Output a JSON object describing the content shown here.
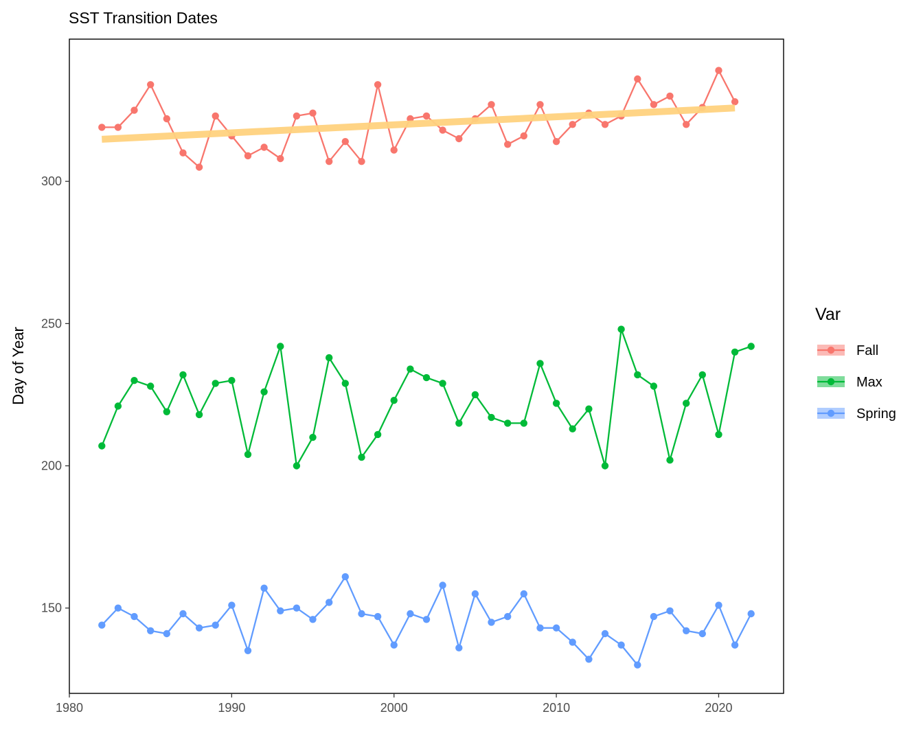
{
  "chart_data": {
    "type": "line",
    "title": "SST Transition Dates",
    "xlabel": "",
    "ylabel": "Day of Year",
    "xlim": [
      1980,
      2024
    ],
    "ylim": [
      120,
      350
    ],
    "x_ticks": [
      1980,
      1990,
      2000,
      2010,
      2020
    ],
    "y_ticks": [
      150,
      200,
      250,
      300
    ],
    "grid": false,
    "legend": {
      "title": "Var",
      "placement": "right"
    },
    "series": [
      {
        "name": "Fall",
        "color": "#F8766D",
        "x": [
          1982,
          1983,
          1984,
          1985,
          1986,
          1987,
          1988,
          1989,
          1990,
          1991,
          1992,
          1993,
          1994,
          1995,
          1996,
          1997,
          1998,
          1999,
          2000,
          2001,
          2002,
          2003,
          2004,
          2005,
          2006,
          2007,
          2008,
          2009,
          2010,
          2011,
          2012,
          2013,
          2014,
          2015,
          2016,
          2017,
          2018,
          2019,
          2020,
          2021
        ],
        "values": [
          319,
          319,
          325,
          334,
          322,
          310,
          305,
          323,
          316,
          309,
          312,
          308,
          323,
          324,
          307,
          314,
          307,
          334,
          311,
          322,
          323,
          318,
          315,
          322,
          327,
          313,
          316,
          327,
          314,
          320,
          324,
          320,
          323,
          336,
          327,
          330,
          320,
          326,
          339,
          328
        ]
      },
      {
        "name": "Max",
        "color": "#00BA38",
        "x": [
          1982,
          1983,
          1984,
          1985,
          1986,
          1987,
          1988,
          1989,
          1990,
          1991,
          1992,
          1993,
          1994,
          1995,
          1996,
          1997,
          1998,
          1999,
          2000,
          2001,
          2002,
          2003,
          2004,
          2005,
          2006,
          2007,
          2008,
          2009,
          2010,
          2011,
          2012,
          2013,
          2014,
          2015,
          2016,
          2017,
          2018,
          2019,
          2020,
          2021,
          2022
        ],
        "values": [
          207,
          221,
          230,
          228,
          219,
          232,
          218,
          229,
          230,
          204,
          226,
          242,
          200,
          210,
          238,
          229,
          203,
          211,
          223,
          234,
          231,
          229,
          215,
          225,
          217,
          215,
          215,
          236,
          222,
          213,
          220,
          200,
          248,
          232,
          228,
          202,
          222,
          232,
          211,
          240,
          242
        ]
      },
      {
        "name": "Spring",
        "color": "#619CFF",
        "x": [
          1982,
          1983,
          1984,
          1985,
          1986,
          1987,
          1988,
          1989,
          1990,
          1991,
          1992,
          1993,
          1994,
          1995,
          1996,
          1997,
          1998,
          1999,
          2000,
          2001,
          2002,
          2003,
          2004,
          2005,
          2006,
          2007,
          2008,
          2009,
          2010,
          2011,
          2012,
          2013,
          2014,
          2015,
          2016,
          2017,
          2018,
          2019,
          2020,
          2021,
          2022
        ],
        "values": [
          144,
          150,
          147,
          142,
          141,
          148,
          143,
          144,
          151,
          135,
          157,
          149,
          150,
          146,
          152,
          161,
          148,
          147,
          137,
          148,
          146,
          158,
          136,
          155,
          145,
          147,
          155,
          143,
          143,
          138,
          132,
          141,
          137,
          130,
          147,
          149,
          142,
          141,
          151,
          137,
          148
        ]
      }
    ],
    "trend": {
      "series": "Fall",
      "color": "#FFD27F",
      "x": [
        1982,
        2021
      ],
      "values": [
        314.8,
        325.8
      ]
    }
  }
}
